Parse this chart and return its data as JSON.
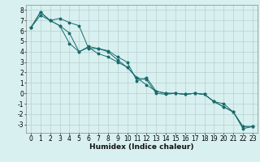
{
  "xlabel": "Humidex (Indice chaleur)",
  "bg_color": "#d8f0f0",
  "grid_color": "#b8d0d0",
  "line_color": "#1a6b6b",
  "xlim": [
    -0.5,
    23.5
  ],
  "ylim": [
    -3.8,
    8.5
  ],
  "xticks": [
    0,
    1,
    2,
    3,
    4,
    5,
    6,
    7,
    8,
    9,
    10,
    11,
    12,
    13,
    14,
    15,
    16,
    17,
    18,
    19,
    20,
    21,
    22,
    23
  ],
  "yticks": [
    -3,
    -2,
    -1,
    0,
    1,
    2,
    3,
    4,
    5,
    6,
    7,
    8
  ],
  "line1_x": [
    0,
    1,
    2,
    3,
    4,
    5,
    6,
    7,
    8,
    9,
    10,
    11,
    12,
    13,
    14,
    15,
    16,
    17,
    18,
    19,
    20,
    21,
    22,
    23
  ],
  "line1_y": [
    6.3,
    7.8,
    7.0,
    6.5,
    5.8,
    4.0,
    4.5,
    4.3,
    4.0,
    3.2,
    2.5,
    1.5,
    0.8,
    0.2,
    0.0,
    0.0,
    -0.1,
    0.0,
    -0.1,
    -0.8,
    -1.3,
    -1.8,
    -3.2,
    -3.2
  ],
  "line2_x": [
    0,
    1,
    2,
    3,
    4,
    5,
    6,
    7,
    8,
    9,
    10,
    11,
    12,
    13,
    14,
    15,
    16,
    17,
    18,
    19,
    20,
    21,
    22,
    23
  ],
  "line2_y": [
    6.3,
    7.8,
    7.0,
    7.2,
    6.8,
    6.5,
    4.3,
    4.3,
    4.1,
    3.5,
    3.0,
    1.2,
    1.5,
    0.2,
    0.0,
    0.0,
    -0.1,
    0.0,
    -0.1,
    -0.8,
    -1.3,
    -1.8,
    -3.2,
    -3.2
  ],
  "line3_x": [
    0,
    1,
    2,
    3,
    4,
    5,
    6,
    7,
    8,
    9,
    10,
    11,
    12,
    13,
    14,
    15,
    16,
    17,
    18,
    19,
    20,
    21,
    22,
    23
  ],
  "line3_y": [
    6.3,
    7.5,
    7.0,
    6.5,
    4.8,
    4.0,
    4.4,
    3.8,
    3.5,
    3.0,
    2.5,
    1.5,
    1.3,
    0.0,
    -0.1,
    0.0,
    -0.1,
    0.0,
    -0.1,
    -0.8,
    -1.0,
    -1.8,
    -3.4,
    -3.2
  ],
  "tick_fontsize": 5.5,
  "xlabel_fontsize": 6.5
}
